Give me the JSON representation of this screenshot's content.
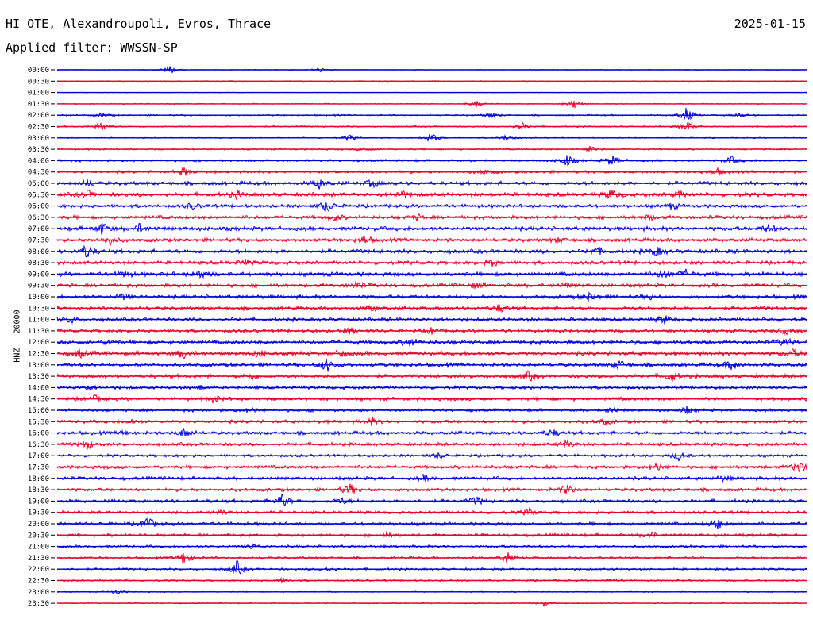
{
  "header": {
    "station": "HI OTE, Alexandroupoli, Evros, Thrace",
    "date": "2025-01-15",
    "filter": "Applied filter: WWSSN-SP"
  },
  "chart_data": {
    "type": "line",
    "title": "HI OTE, Alexandroupoli, Evros, Thrace",
    "subtitle": "Applied filter: WWSSN-SP",
    "date": "2025-01-15",
    "ylabel": "HNZ - 20000",
    "xlabel": "",
    "colors": {
      "even_trace": "#0000dd",
      "odd_trace": "#e8002a"
    },
    "grid": false,
    "rows": [
      {
        "label": "00:00",
        "noise": 0.4,
        "events": [
          [
            0.15,
            6
          ],
          [
            0.35,
            3
          ]
        ]
      },
      {
        "label": "00:30",
        "noise": 0.5,
        "events": []
      },
      {
        "label": "01:00",
        "noise": 0.3,
        "events": []
      },
      {
        "label": "01:30",
        "noise": 0.5,
        "events": [
          [
            0.56,
            4
          ],
          [
            0.69,
            6
          ]
        ]
      },
      {
        "label": "02:00",
        "noise": 0.8,
        "events": [
          [
            0.06,
            3
          ],
          [
            0.58,
            4
          ],
          [
            0.84,
            10
          ],
          [
            0.91,
            3
          ]
        ]
      },
      {
        "label": "02:30",
        "noise": 0.8,
        "events": [
          [
            0.06,
            7
          ],
          [
            0.62,
            5
          ],
          [
            0.84,
            7
          ]
        ]
      },
      {
        "label": "03:00",
        "noise": 0.6,
        "events": [
          [
            0.39,
            4
          ],
          [
            0.5,
            7
          ],
          [
            0.6,
            4
          ]
        ]
      },
      {
        "label": "03:30",
        "noise": 0.9,
        "events": [
          [
            0.41,
            3
          ],
          [
            0.71,
            4
          ]
        ]
      },
      {
        "label": "04:00",
        "noise": 1.2,
        "events": [
          [
            0.68,
            8
          ],
          [
            0.74,
            7
          ],
          [
            0.9,
            5
          ]
        ]
      },
      {
        "label": "04:30",
        "noise": 1.5,
        "events": [
          [
            0.17,
            6
          ],
          [
            0.57,
            3
          ],
          [
            0.88,
            4
          ]
        ]
      },
      {
        "label": "05:00",
        "noise": 2.0,
        "events": [
          [
            0.04,
            5
          ],
          [
            0.35,
            6
          ],
          [
            0.42,
            5
          ]
        ]
      },
      {
        "label": "05:30",
        "noise": 2.2,
        "events": [
          [
            0.04,
            5
          ],
          [
            0.24,
            4
          ],
          [
            0.46,
            6
          ],
          [
            0.74,
            6
          ],
          [
            0.83,
            4
          ]
        ]
      },
      {
        "label": "06:00",
        "noise": 1.8,
        "events": [
          [
            0.18,
            4
          ],
          [
            0.36,
            8
          ],
          [
            0.82,
            4
          ]
        ]
      },
      {
        "label": "06:30",
        "noise": 2.0,
        "events": [
          [
            0.37,
            4
          ],
          [
            0.48,
            3
          ],
          [
            0.79,
            3
          ]
        ]
      },
      {
        "label": "07:00",
        "noise": 2.2,
        "events": [
          [
            0.06,
            7
          ],
          [
            0.11,
            5
          ],
          [
            0.95,
            5
          ]
        ]
      },
      {
        "label": "07:30",
        "noise": 2.0,
        "events": [
          [
            0.07,
            6
          ],
          [
            0.41,
            5
          ],
          [
            0.67,
            3
          ]
        ]
      },
      {
        "label": "08:00",
        "noise": 2.2,
        "events": [
          [
            0.04,
            9
          ],
          [
            0.72,
            5
          ],
          [
            0.8,
            6
          ]
        ]
      },
      {
        "label": "08:30",
        "noise": 2.0,
        "events": [
          [
            0.25,
            4
          ],
          [
            0.58,
            4
          ]
        ]
      },
      {
        "label": "09:00",
        "noise": 2.2,
        "events": [
          [
            0.09,
            4
          ],
          [
            0.19,
            5
          ],
          [
            0.81,
            6
          ],
          [
            0.84,
            5
          ]
        ]
      },
      {
        "label": "09:30",
        "noise": 2.0,
        "events": [
          [
            0.4,
            5
          ],
          [
            0.56,
            4
          ],
          [
            0.68,
            3
          ]
        ]
      },
      {
        "label": "10:00",
        "noise": 2.0,
        "events": [
          [
            0.09,
            4
          ],
          [
            0.71,
            6
          ],
          [
            0.79,
            3
          ]
        ]
      },
      {
        "label": "10:30",
        "noise": 1.8,
        "events": [
          [
            0.42,
            4
          ],
          [
            0.59,
            5
          ]
        ]
      },
      {
        "label": "11:00",
        "noise": 2.0,
        "events": [
          [
            0.02,
            4
          ],
          [
            0.81,
            5
          ]
        ]
      },
      {
        "label": "11:30",
        "noise": 1.8,
        "events": [
          [
            0.39,
            4
          ],
          [
            0.5,
            4
          ],
          [
            0.97,
            4
          ]
        ]
      },
      {
        "label": "12:00",
        "noise": 2.2,
        "events": [
          [
            0.07,
            3
          ],
          [
            0.47,
            5
          ],
          [
            0.97,
            5
          ]
        ]
      },
      {
        "label": "12:30",
        "noise": 2.2,
        "events": [
          [
            0.03,
            5
          ],
          [
            0.17,
            6
          ],
          [
            0.27,
            4
          ],
          [
            0.38,
            4
          ],
          [
            0.98,
            5
          ]
        ]
      },
      {
        "label": "13:00",
        "noise": 2.0,
        "events": [
          [
            0.36,
            9
          ],
          [
            0.75,
            6
          ],
          [
            0.9,
            6
          ]
        ]
      },
      {
        "label": "13:30",
        "noise": 2.0,
        "events": [
          [
            0.26,
            4
          ],
          [
            0.63,
            6
          ],
          [
            0.82,
            6
          ]
        ]
      },
      {
        "label": "14:00",
        "noise": 1.8,
        "events": [
          [
            0.04,
            3
          ],
          [
            0.19,
            3
          ]
        ]
      },
      {
        "label": "14:30",
        "noise": 1.8,
        "events": [
          [
            0.05,
            4
          ],
          [
            0.21,
            4
          ]
        ]
      },
      {
        "label": "15:00",
        "noise": 1.6,
        "events": [
          [
            0.26,
            3
          ],
          [
            0.74,
            4
          ],
          [
            0.84,
            4
          ]
        ]
      },
      {
        "label": "15:30",
        "noise": 1.8,
        "events": [
          [
            0.1,
            3
          ],
          [
            0.42,
            5
          ],
          [
            0.73,
            4
          ]
        ]
      },
      {
        "label": "16:00",
        "noise": 1.8,
        "events": [
          [
            0.09,
            3
          ],
          [
            0.17,
            7
          ],
          [
            0.66,
            5
          ]
        ]
      },
      {
        "label": "16:30",
        "noise": 1.8,
        "events": [
          [
            0.04,
            6
          ],
          [
            0.68,
            5
          ]
        ]
      },
      {
        "label": "17:00",
        "noise": 1.5,
        "events": [
          [
            0.51,
            4
          ],
          [
            0.83,
            6
          ]
        ]
      },
      {
        "label": "17:30",
        "noise": 1.8,
        "events": [
          [
            0.8,
            5
          ],
          [
            0.99,
            9
          ]
        ]
      },
      {
        "label": "18:00",
        "noise": 1.8,
        "events": [
          [
            0.49,
            4
          ],
          [
            0.89,
            4
          ]
        ]
      },
      {
        "label": "18:30",
        "noise": 1.8,
        "events": [
          [
            0.39,
            7
          ],
          [
            0.68,
            7
          ]
        ]
      },
      {
        "label": "19:00",
        "noise": 1.8,
        "events": [
          [
            0.3,
            9
          ],
          [
            0.38,
            4
          ],
          [
            0.56,
            5
          ]
        ]
      },
      {
        "label": "19:30",
        "noise": 1.6,
        "events": [
          [
            0.22,
            3
          ],
          [
            0.63,
            4
          ]
        ]
      },
      {
        "label": "20:00",
        "noise": 1.8,
        "events": [
          [
            0.12,
            9
          ],
          [
            0.88,
            7
          ]
        ]
      },
      {
        "label": "20:30",
        "noise": 1.6,
        "events": [
          [
            0.44,
            3
          ],
          [
            0.79,
            4
          ]
        ]
      },
      {
        "label": "21:00",
        "noise": 1.4,
        "events": [
          [
            0.26,
            3
          ]
        ]
      },
      {
        "label": "21:30",
        "noise": 1.4,
        "events": [
          [
            0.17,
            10
          ],
          [
            0.6,
            7
          ]
        ]
      },
      {
        "label": "22:00",
        "noise": 1.2,
        "events": [
          [
            0.24,
            10
          ],
          [
            0.36,
            3
          ]
        ]
      },
      {
        "label": "22:30",
        "noise": 1.0,
        "events": [
          [
            0.3,
            3
          ],
          [
            0.74,
            3
          ]
        ]
      },
      {
        "label": "23:00",
        "noise": 0.6,
        "events": [
          [
            0.08,
            3
          ]
        ]
      },
      {
        "label": "23:30",
        "noise": 0.6,
        "events": [
          [
            0.65,
            3
          ]
        ]
      }
    ]
  }
}
